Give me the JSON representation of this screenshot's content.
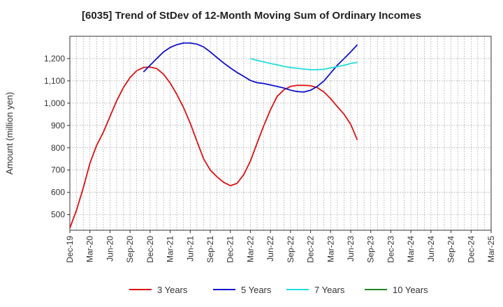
{
  "chart_data": {
    "type": "line",
    "title": "[6035]  Trend of StDev of 12-Month Moving Sum of Ordinary Incomes",
    "xlabel": "",
    "ylabel": "Amount (million yen)",
    "ylim": [
      430,
      1300
    ],
    "yticks": [
      500,
      600,
      700,
      800,
      900,
      1000,
      1100,
      1200
    ],
    "ytick_labels": [
      "500",
      "600",
      "700",
      "800",
      "900",
      "1,000",
      "1,100",
      "1,200"
    ],
    "x_categories": [
      "Dec-19",
      "Mar-20",
      "Jun-20",
      "Sep-20",
      "Dec-20",
      "Mar-21",
      "Jun-21",
      "Sep-21",
      "Dec-21",
      "Mar-22",
      "Jun-22",
      "Sep-22",
      "Dec-22",
      "Mar-23",
      "Jun-23",
      "Sep-23",
      "Dec-23",
      "Mar-24",
      "Jun-24",
      "Sep-24",
      "Dec-24",
      "Mar-25"
    ],
    "grid": true,
    "legend_position": "bottom",
    "series": [
      {
        "name": "3 Years",
        "color": "#dd1111",
        "points": [
          [
            0,
            440
          ],
          [
            0.33,
            520
          ],
          [
            0.67,
            620
          ],
          [
            1,
            730
          ],
          [
            1.33,
            810
          ],
          [
            1.67,
            870
          ],
          [
            2,
            940
          ],
          [
            2.33,
            1010
          ],
          [
            2.67,
            1070
          ],
          [
            3,
            1115
          ],
          [
            3.33,
            1145
          ],
          [
            3.67,
            1160
          ],
          [
            4,
            1162
          ],
          [
            4.33,
            1155
          ],
          [
            4.67,
            1130
          ],
          [
            5,
            1090
          ],
          [
            5.33,
            1040
          ],
          [
            5.67,
            980
          ],
          [
            6,
            910
          ],
          [
            6.33,
            830
          ],
          [
            6.67,
            750
          ],
          [
            7,
            700
          ],
          [
            7.33,
            670
          ],
          [
            7.67,
            645
          ],
          [
            8,
            630
          ],
          [
            8.33,
            640
          ],
          [
            8.67,
            680
          ],
          [
            9,
            740
          ],
          [
            9.33,
            820
          ],
          [
            9.67,
            900
          ],
          [
            10,
            970
          ],
          [
            10.33,
            1030
          ],
          [
            10.67,
            1060
          ],
          [
            11,
            1075
          ],
          [
            11.33,
            1080
          ],
          [
            11.67,
            1080
          ],
          [
            12,
            1078
          ],
          [
            12.33,
            1070
          ],
          [
            12.67,
            1050
          ],
          [
            13,
            1020
          ],
          [
            13.33,
            985
          ],
          [
            13.67,
            950
          ],
          [
            14,
            905
          ],
          [
            14.33,
            835
          ]
        ]
      },
      {
        "name": "5 Years",
        "color": "#1111cc",
        "points": [
          [
            3.67,
            1140
          ],
          [
            4,
            1170
          ],
          [
            4.33,
            1200
          ],
          [
            4.67,
            1230
          ],
          [
            5,
            1250
          ],
          [
            5.33,
            1262
          ],
          [
            5.67,
            1270
          ],
          [
            6,
            1270
          ],
          [
            6.33,
            1265
          ],
          [
            6.67,
            1252
          ],
          [
            7,
            1230
          ],
          [
            7.33,
            1205
          ],
          [
            7.67,
            1180
          ],
          [
            8,
            1158
          ],
          [
            8.33,
            1138
          ],
          [
            8.67,
            1120
          ],
          [
            9,
            1102
          ],
          [
            9.33,
            1092
          ],
          [
            9.67,
            1088
          ],
          [
            10,
            1082
          ],
          [
            10.33,
            1075
          ],
          [
            10.67,
            1068
          ],
          [
            11,
            1058
          ],
          [
            11.33,
            1052
          ],
          [
            11.67,
            1050
          ],
          [
            12,
            1058
          ],
          [
            12.33,
            1075
          ],
          [
            12.67,
            1100
          ],
          [
            13,
            1135
          ],
          [
            13.33,
            1170
          ],
          [
            13.67,
            1200
          ],
          [
            14,
            1230
          ],
          [
            14.33,
            1262
          ]
        ]
      },
      {
        "name": "7 Years",
        "color": "#22dddd",
        "points": [
          [
            9,
            1200
          ],
          [
            9.33,
            1192
          ],
          [
            9.67,
            1185
          ],
          [
            10,
            1178
          ],
          [
            10.33,
            1172
          ],
          [
            10.67,
            1165
          ],
          [
            11,
            1160
          ],
          [
            11.33,
            1156
          ],
          [
            11.67,
            1153
          ],
          [
            12,
            1150
          ],
          [
            12.33,
            1150
          ],
          [
            12.67,
            1152
          ],
          [
            13,
            1158
          ],
          [
            13.33,
            1164
          ],
          [
            13.67,
            1170
          ],
          [
            14,
            1178
          ],
          [
            14.33,
            1183
          ]
        ]
      },
      {
        "name": "10 Years",
        "color": "#228822",
        "points": []
      }
    ]
  }
}
